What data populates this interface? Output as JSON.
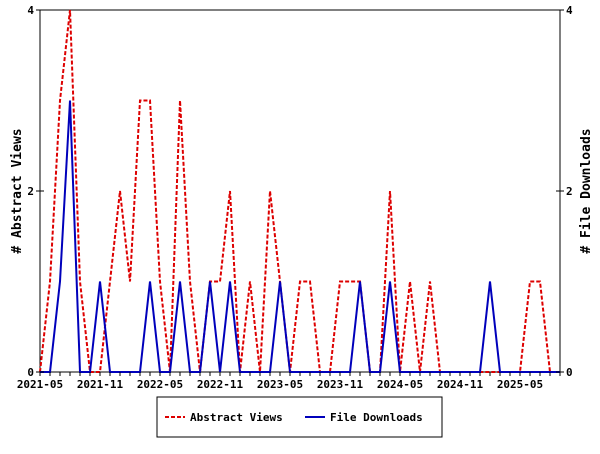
{
  "chart_data": {
    "type": "line",
    "x": [
      "2021-05",
      "2021-06",
      "2021-07",
      "2021-08",
      "2021-09",
      "2021-10",
      "2021-11",
      "2021-12",
      "2022-01",
      "2022-02",
      "2022-03",
      "2022-04",
      "2022-05",
      "2022-06",
      "2022-07",
      "2022-08",
      "2022-09",
      "2022-10",
      "2022-11",
      "2022-12",
      "2023-01",
      "2023-02",
      "2023-03",
      "2023-04",
      "2023-05",
      "2023-06",
      "2023-07",
      "2023-08",
      "2023-09",
      "2023-10",
      "2023-11",
      "2023-12",
      "2024-01",
      "2024-02",
      "2024-03",
      "2024-04",
      "2024-05",
      "2024-06",
      "2024-07",
      "2024-08",
      "2024-09",
      "2024-10",
      "2024-11",
      "2024-12",
      "2025-01",
      "2025-02",
      "2025-03",
      "2025-04",
      "2025-05",
      "2025-06",
      "2025-07",
      "2025-08",
      "2025-09"
    ],
    "xticks": [
      "2021-05",
      "2021-11",
      "2022-05",
      "2022-11",
      "2023-05",
      "2023-11",
      "2024-05",
      "2024-11",
      "2025-05"
    ],
    "series": [
      {
        "name": "Abstract Views",
        "axis": "left",
        "color": "#dd0000",
        "values": [
          0,
          1,
          3,
          4,
          1,
          0,
          0,
          1,
          2,
          1,
          3,
          3,
          1,
          0,
          3,
          1,
          0,
          1,
          1,
          2,
          0,
          1,
          0,
          2,
          1,
          0,
          1,
          1,
          0,
          0,
          1,
          1,
          1,
          0,
          0,
          2,
          0,
          1,
          0,
          1,
          0,
          0,
          0,
          0,
          0,
          0,
          0,
          0,
          0,
          1,
          1,
          0,
          0
        ]
      },
      {
        "name": "File Downloads",
        "axis": "right",
        "color": "#0000bb",
        "values": [
          0,
          0,
          1,
          3,
          0,
          0,
          1,
          0,
          0,
          0,
          0,
          1,
          0,
          0,
          1,
          0,
          0,
          1,
          0,
          1,
          0,
          0,
          0,
          0,
          1,
          0,
          0,
          0,
          0,
          0,
          0,
          0,
          1,
          0,
          0,
          1,
          0,
          0,
          0,
          0,
          0,
          0,
          0,
          0,
          0,
          1,
          0,
          0,
          0,
          0,
          0,
          0,
          0
        ]
      }
    ],
    "ylabel": "# Abstract Views",
    "y2label": "# File Downloads",
    "ylim": [
      0,
      4
    ],
    "y2lim": [
      0,
      4
    ],
    "yticks": [
      "0",
      "2",
      "4"
    ],
    "y2ticks": [
      "0",
      "2",
      "4"
    ],
    "legend": "bottom-center",
    "grid": false
  }
}
